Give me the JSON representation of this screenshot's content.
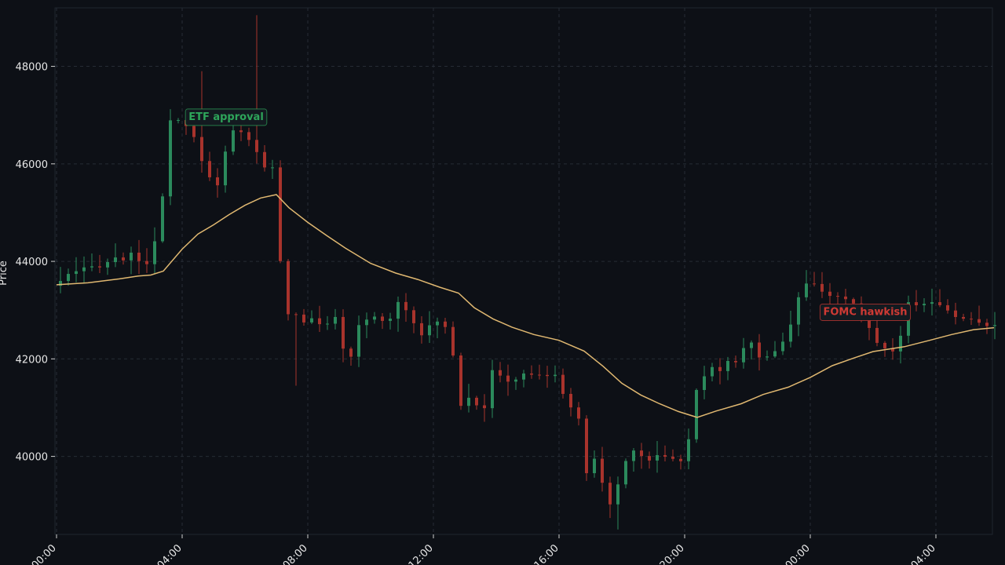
{
  "chart_data": {
    "type": "candlestick",
    "xlabel": "",
    "ylabel": "Price",
    "x_ticks": [
      "00:00",
      "04:00",
      "08:00",
      "12:00",
      "16:00",
      "20:00",
      "00:00",
      "04:00"
    ],
    "y_ticks": [
      40000,
      42000,
      44000,
      46000,
      48000
    ],
    "ylim": [
      38400,
      49200
    ],
    "xlim": [
      0,
      29.85
    ],
    "x_unit": "hours from first tick label",
    "grid": true,
    "annotations": [
      {
        "text": "ETF approval",
        "x": 5.4,
        "y": 46980,
        "color": "#2ea55a"
      },
      {
        "text": "FOMC hawkish",
        "x": 25.75,
        "y": 42980,
        "color": "#cf3a34"
      }
    ],
    "candle_interval_minutes": 15,
    "anchors": [
      [
        0,
        43500
      ],
      [
        0.5,
        43700
      ],
      [
        1,
        43800
      ],
      [
        1.5,
        43950
      ],
      [
        2,
        44050
      ],
      [
        2.5,
        44100
      ],
      [
        3,
        44000
      ],
      [
        3.3,
        44400
      ],
      [
        3.5,
        45300
      ],
      [
        3.6,
        46900
      ],
      [
        4.2,
        46800
      ],
      [
        4.5,
        46500
      ],
      [
        4.7,
        46200
      ],
      [
        5.0,
        45700
      ],
      [
        5.3,
        45600
      ],
      [
        5.6,
        46600
      ],
      [
        6.0,
        46700
      ],
      [
        6.3,
        46500
      ],
      [
        6.7,
        45900
      ],
      [
        7.0,
        45900
      ],
      [
        7.2,
        44300
      ],
      [
        7.4,
        43000
      ],
      [
        7.7,
        42900
      ],
      [
        8.0,
        42800
      ],
      [
        8.6,
        42700
      ],
      [
        9.0,
        42900
      ],
      [
        9.4,
        41700
      ],
      [
        9.7,
        42600
      ],
      [
        10.2,
        42900
      ],
      [
        10.6,
        42700
      ],
      [
        11.0,
        43200
      ],
      [
        11.4,
        42900
      ],
      [
        11.8,
        42500
      ],
      [
        12.3,
        42800
      ],
      [
        12.7,
        42500
      ],
      [
        12.9,
        41000
      ],
      [
        13.3,
        41300
      ],
      [
        13.7,
        40900
      ],
      [
        14.0,
        41700
      ],
      [
        14.5,
        41550
      ],
      [
        15.0,
        41650
      ],
      [
        15.5,
        41700
      ],
      [
        16.0,
        41600
      ],
      [
        16.3,
        41300
      ],
      [
        16.6,
        40900
      ],
      [
        16.9,
        40500
      ],
      [
        17.0,
        39700
      ],
      [
        17.3,
        40000
      ],
      [
        17.6,
        39200
      ],
      [
        17.8,
        38900
      ],
      [
        18.1,
        39700
      ],
      [
        18.5,
        40200
      ],
      [
        18.9,
        39900
      ],
      [
        19.4,
        40100
      ],
      [
        19.8,
        39900
      ],
      [
        20.2,
        40000
      ],
      [
        20.4,
        41200
      ],
      [
        20.6,
        41500
      ],
      [
        20.9,
        41900
      ],
      [
        21.3,
        41800
      ],
      [
        21.8,
        42000
      ],
      [
        22.3,
        42400
      ],
      [
        22.6,
        41900
      ],
      [
        23.0,
        42200
      ],
      [
        23.4,
        42500
      ],
      [
        23.7,
        43200
      ],
      [
        24.0,
        43500
      ],
      [
        24.5,
        43450
      ],
      [
        25.0,
        43200
      ],
      [
        25.5,
        43100
      ],
      [
        26.0,
        42600
      ],
      [
        26.5,
        42200
      ],
      [
        26.9,
        42200
      ],
      [
        27.2,
        43100
      ],
      [
        27.7,
        43200
      ],
      [
        28.2,
        43100
      ],
      [
        28.6,
        43000
      ],
      [
        29.0,
        42800
      ],
      [
        29.4,
        42750
      ],
      [
        29.8,
        42750
      ]
    ],
    "moving_average": {
      "color": "#e0b871",
      "points": [
        [
          0,
          43520
        ],
        [
          1,
          43560
        ],
        [
          2,
          43640
        ],
        [
          2.6,
          43700
        ],
        [
          3.0,
          43720
        ],
        [
          3.4,
          43800
        ],
        [
          4.0,
          44250
        ],
        [
          4.5,
          44560
        ],
        [
          5.0,
          44750
        ],
        [
          5.5,
          44960
        ],
        [
          6.0,
          45150
        ],
        [
          6.5,
          45300
        ],
        [
          7.0,
          45370
        ],
        [
          7.4,
          45100
        ],
        [
          8.0,
          44800
        ],
        [
          8.6,
          44530
        ],
        [
          9.2,
          44270
        ],
        [
          10.0,
          43960
        ],
        [
          10.8,
          43760
        ],
        [
          11.5,
          43630
        ],
        [
          12.2,
          43470
        ],
        [
          12.8,
          43350
        ],
        [
          13.3,
          43050
        ],
        [
          13.9,
          42820
        ],
        [
          14.5,
          42650
        ],
        [
          15.2,
          42500
        ],
        [
          16.0,
          42380
        ],
        [
          16.8,
          42160
        ],
        [
          17.4,
          41850
        ],
        [
          18.0,
          41500
        ],
        [
          18.6,
          41260
        ],
        [
          19.2,
          41080
        ],
        [
          19.8,
          40920
        ],
        [
          20.4,
          40800
        ],
        [
          21.0,
          40930
        ],
        [
          21.8,
          41080
        ],
        [
          22.5,
          41270
        ],
        [
          23.3,
          41420
        ],
        [
          24.0,
          41620
        ],
        [
          24.7,
          41860
        ],
        [
          25.4,
          42020
        ],
        [
          26.0,
          42150
        ],
        [
          26.5,
          42200
        ],
        [
          27.0,
          42250
        ],
        [
          27.8,
          42380
        ],
        [
          28.5,
          42500
        ],
        [
          29.2,
          42600
        ],
        [
          29.85,
          42640
        ]
      ]
    },
    "up_color": "#2b8a5c",
    "down_color": "#a8332c"
  }
}
